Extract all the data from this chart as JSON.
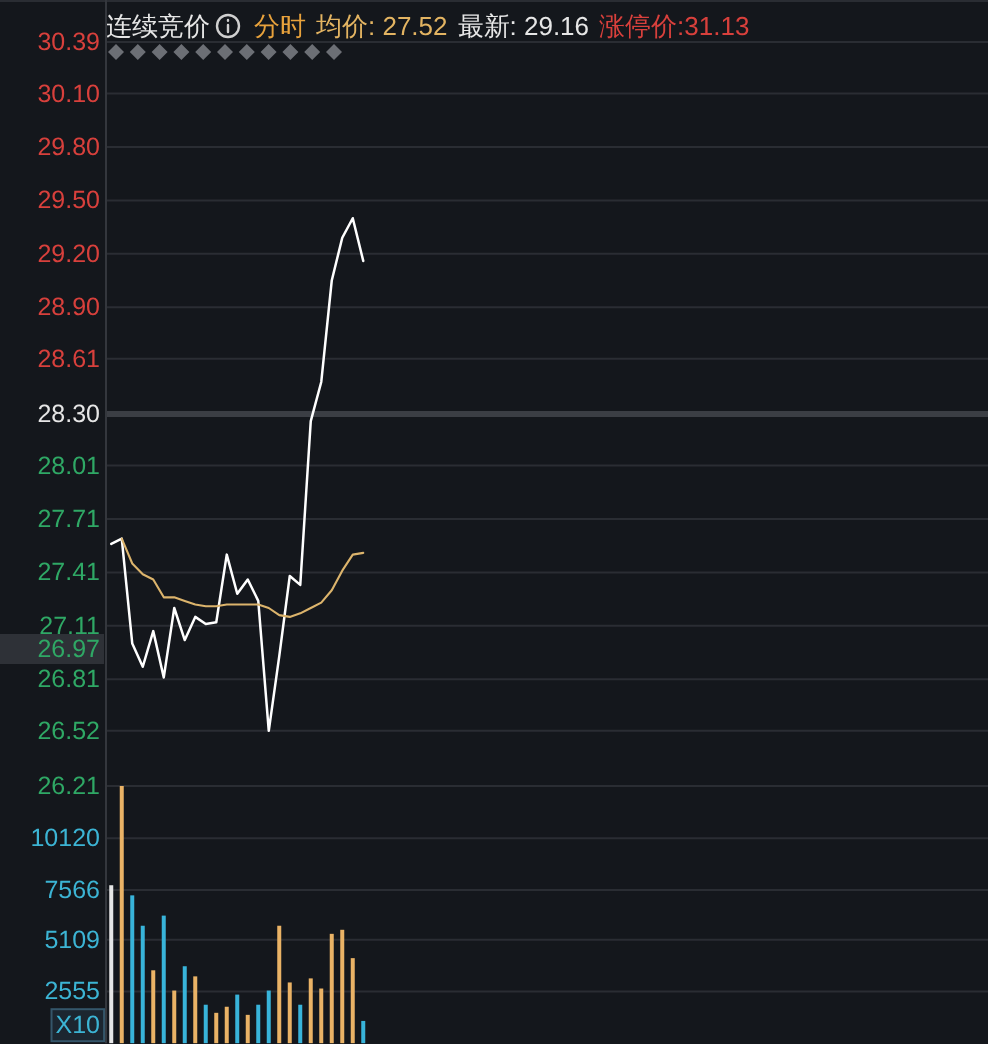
{
  "chart_data": [
    {
      "type": "line",
      "title": "连续竞价",
      "annotations": [
        "分时",
        "均价: 27.52",
        "最新: 29.16",
        "涨停价:31.13",
        "26.97"
      ],
      "categories": [
        null,
        null,
        null,
        null,
        null,
        null,
        null,
        null,
        null,
        null,
        null,
        null,
        null,
        null,
        null,
        null,
        null,
        null,
        null,
        null,
        null,
        null,
        null,
        null,
        null,
        null,
        null,
        null,
        null,
        null,
        null,
        null,
        null,
        null,
        null,
        null,
        null,
        null,
        null,
        null,
        null,
        null,
        null,
        null,
        null,
        null,
        null,
        null,
        null,
        null,
        null,
        null,
        null,
        null,
        null,
        null,
        null,
        null,
        null,
        null,
        null,
        null,
        null,
        null,
        null,
        null,
        null,
        null,
        null,
        null,
        null,
        null,
        null,
        null,
        null,
        null,
        null,
        null,
        null,
        null,
        null,
        null,
        null,
        null
      ],
      "series": [
        {
          "color": "#ffffff",
          "values": [
            27.57,
            27.6,
            27.01,
            26.88,
            27.08,
            26.82,
            27.21,
            27.03,
            27.16,
            27.12,
            27.13,
            27.51,
            27.29,
            27.37,
            27.25,
            26.52,
            26.94,
            27.39,
            27.34,
            28.26,
            28.48,
            29.05,
            29.29,
            29.4,
            29.16,
            null,
            null,
            null,
            null,
            null,
            null,
            null,
            null,
            null,
            null,
            null,
            null,
            null,
            null,
            null,
            null,
            null,
            null,
            null,
            null,
            null,
            null,
            null,
            null,
            null,
            null,
            null,
            null,
            null,
            null,
            null,
            null,
            null,
            null,
            null,
            null,
            null,
            null,
            null,
            null,
            null,
            null,
            null,
            null,
            null,
            null,
            null,
            null,
            null,
            null,
            null,
            null,
            null,
            null,
            null,
            null,
            null,
            null,
            null
          ]
        },
        {
          "color": "#dcb46c",
          "values": [
            null,
            27.6,
            27.46,
            27.4,
            27.37,
            27.27,
            27.27,
            27.25,
            27.23,
            27.22,
            27.22,
            27.23,
            27.23,
            27.23,
            27.23,
            27.21,
            27.17,
            27.16,
            27.18,
            27.21,
            27.24,
            27.31,
            27.42,
            27.51,
            27.52,
            null,
            null,
            null,
            null,
            null,
            null,
            null,
            null,
            null,
            null,
            null,
            null,
            null,
            null,
            null,
            null,
            null,
            null,
            null,
            null,
            null,
            null,
            null,
            null,
            null,
            null,
            null,
            null,
            null,
            null,
            null,
            null,
            null,
            null,
            null,
            null,
            null,
            null,
            null,
            null,
            null,
            null,
            null,
            null,
            null,
            null,
            null,
            null,
            null,
            null,
            null,
            null,
            null,
            null,
            null,
            null,
            null,
            null,
            null
          ]
        }
      ],
      "ylim": [
        26.21,
        30.39
      ],
      "yticks": [
        30.39,
        {
          "value": 30.1,
          "label": "30.10"
        },
        {
          "value": 29.8,
          "label": "29.80"
        },
        {
          "value": 29.5,
          "label": "29.50"
        },
        {
          "value": 29.2,
          "label": "29.20"
        },
        {
          "value": 28.9,
          "label": "28.90"
        },
        28.61,
        {
          "value": 28.3,
          "label": "28.30"
        },
        28.01,
        27.71,
        27.41,
        27.11,
        26.81,
        26.52,
        26.21
      ],
      "ref_lines": [
        {
          "axis": "y",
          "value": 28.3,
          "label": null,
          "color": "#3b3e44"
        }
      ],
      "grid": "y",
      "tick_labels": "y",
      "marker": "none",
      "line_style": "solid"
    },
    {
      "type": "bar",
      "ylabel": "X10",
      "categories": [
        null,
        null,
        null,
        null,
        null,
        null,
        null,
        null,
        null,
        null,
        null,
        null,
        null,
        null,
        null,
        null,
        null,
        null,
        null,
        null,
        null,
        null,
        null,
        null,
        null,
        null,
        null,
        null,
        null,
        null,
        null,
        null,
        null,
        null,
        null,
        null,
        null,
        null,
        null,
        null,
        null,
        null,
        null,
        null,
        null,
        null,
        null,
        null,
        null,
        null,
        null,
        null,
        null,
        null,
        null,
        null,
        null,
        null,
        null,
        null,
        null,
        null,
        null,
        null,
        null,
        null,
        null,
        null,
        null,
        null,
        null,
        null,
        null,
        null,
        null,
        null,
        null,
        null,
        null,
        null,
        null,
        null,
        null,
        null
      ],
      "values": [
        7800,
        12700,
        7300,
        5800,
        3600,
        6300,
        2600,
        3800,
        3300,
        1900,
        1500,
        1800,
        2400,
        1400,
        1900,
        2600,
        5800,
        3000,
        1900,
        3200,
        2700,
        5400,
        5600,
        4200,
        1100,
        null,
        null,
        null,
        null,
        null,
        null,
        null,
        null,
        null,
        null,
        null,
        null,
        null,
        null,
        null,
        null,
        null,
        null,
        null,
        null,
        null,
        null,
        null,
        null,
        null,
        null,
        null,
        null,
        null,
        null,
        null,
        null,
        null,
        null,
        null,
        null,
        null,
        null,
        null,
        null,
        null,
        null,
        null,
        null,
        null,
        null,
        null,
        null,
        null,
        null,
        null,
        null,
        null,
        null,
        null,
        null,
        null,
        null,
        null
      ],
      "colors": [
        "#e6e6e6",
        "#eab366",
        "#38b4da",
        "#38b4da",
        "#eab366",
        "#38b4da",
        "#eab366",
        "#38b4da",
        "#eab366",
        "#38b4da",
        "#eab366",
        "#eab366",
        "#38b4da",
        "#eab366",
        "#38b4da",
        "#38b4da",
        "#eab366",
        "#eab366",
        "#38b4da",
        "#eab366",
        "#eab366",
        "#eab366",
        "#eab366",
        "#eab366",
        "#38b4da",
        null,
        null,
        null,
        null,
        null,
        null,
        null,
        null,
        null,
        null,
        null,
        null,
        null,
        null,
        null,
        null,
        null,
        null,
        null,
        null,
        null,
        null,
        null,
        null,
        null,
        null,
        null,
        null,
        null,
        null,
        null,
        null,
        null,
        null,
        null,
        null,
        null,
        null,
        null,
        null,
        null,
        null,
        null,
        null,
        null,
        null,
        null,
        null,
        null,
        null,
        null,
        null,
        null,
        null,
        null,
        null,
        null,
        null,
        null
      ],
      "ylim": [
        0,
        12700
      ],
      "yticks": [
        2555,
        5109,
        7566,
        10120
      ],
      "grid": "y",
      "tick_labels": "y"
    }
  ]
}
